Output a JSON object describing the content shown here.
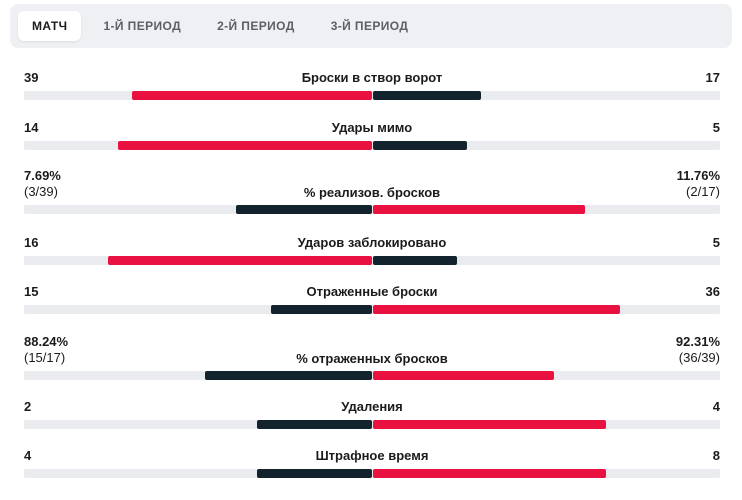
{
  "colors": {
    "accent": "#e8113f",
    "dark": "#13232d",
    "track": "#e9ebee",
    "tab_bg": "#eef0f3"
  },
  "tabs": [
    {
      "label": "МАТЧ",
      "active": true
    },
    {
      "label": "1-Й ПЕРИОД",
      "active": false
    },
    {
      "label": "2-Й ПЕРИОД",
      "active": false
    },
    {
      "label": "3-Й ПЕРИОД",
      "active": false
    }
  ],
  "stats": [
    {
      "label": "Броски в створ ворот",
      "home": "39",
      "away": "17",
      "home_fill": 0.69,
      "away_fill": 0.31,
      "home_color": "accent",
      "away_color": "dark"
    },
    {
      "label": "Удары мимо",
      "home": "14",
      "away": "5",
      "home_fill": 0.73,
      "away_fill": 0.27,
      "home_color": "accent",
      "away_color": "dark"
    },
    {
      "label": "% реализов. бросков",
      "home": "7.69%",
      "home_sub": "(3/39)",
      "away": "11.76%",
      "away_sub": "(2/17)",
      "home_fill": 0.39,
      "away_fill": 0.61,
      "home_color": "dark",
      "away_color": "accent"
    },
    {
      "label": "Ударов заблокировано",
      "home": "16",
      "away": "5",
      "home_fill": 0.76,
      "away_fill": 0.24,
      "home_color": "accent",
      "away_color": "dark"
    },
    {
      "label": "Отраженные броски",
      "home": "15",
      "away": "36",
      "home_fill": 0.29,
      "away_fill": 0.71,
      "home_color": "dark",
      "away_color": "accent"
    },
    {
      "label": "% отраженных бросков",
      "home": "88.24%",
      "home_sub": "(15/17)",
      "away": "92.31%",
      "away_sub": "(36/39)",
      "home_fill": 0.48,
      "away_fill": 0.52,
      "home_color": "dark",
      "away_color": "accent"
    },
    {
      "label": "Удаления",
      "home": "2",
      "away": "4",
      "home_fill": 0.33,
      "away_fill": 0.67,
      "home_color": "dark",
      "away_color": "accent"
    },
    {
      "label": "Штрафное время",
      "home": "4",
      "away": "8",
      "home_fill": 0.33,
      "away_fill": 0.67,
      "home_color": "dark",
      "away_color": "accent"
    }
  ]
}
